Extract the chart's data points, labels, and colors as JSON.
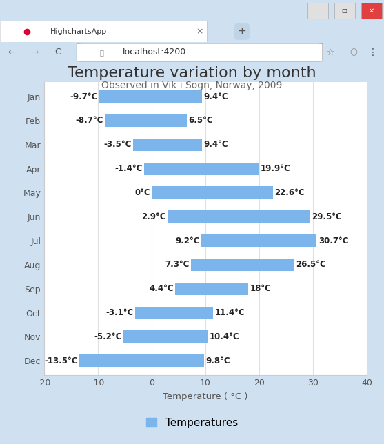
{
  "title": "Temperature variation by month",
  "subtitle": "Observed in Vik i Sogn, Norway, 2009",
  "xlabel": "Temperature ( °C )",
  "legend_label": "Temperatures",
  "bar_color": "#7cb5ec",
  "bg_color": "#cfe0f0",
  "plot_bg_color": "#ffffff",
  "months": [
    "Jan",
    "Feb",
    "Mar",
    "Apr",
    "May",
    "Jun",
    "Jul",
    "Aug",
    "Sep",
    "Oct",
    "Nov",
    "Dec"
  ],
  "low": [
    -9.7,
    -8.7,
    -3.5,
    -1.4,
    0.0,
    2.9,
    9.2,
    7.3,
    4.4,
    -3.1,
    -5.2,
    -13.5
  ],
  "high": [
    9.4,
    6.5,
    9.4,
    19.9,
    22.6,
    29.5,
    30.7,
    26.5,
    18.0,
    11.4,
    10.4,
    9.8
  ],
  "high_labels": [
    "9.4°C",
    "6.5°C",
    "9.4°C",
    "19.9°C",
    "22.6°C",
    "29.5°C",
    "30.7°C",
    "26.5°C",
    "18°C",
    "11.4°C",
    "10.4°C",
    "9.8°C"
  ],
  "low_labels": [
    "-9.7°C",
    "-8.7°C",
    "-3.5°C",
    "-1.4°C",
    "0°C",
    "2.9°C",
    "9.2°C",
    "7.3°C",
    "4.4°C",
    "-3.1°C",
    "-5.2°C",
    "-13.5°C"
  ],
  "xlim": [
    -20,
    40
  ],
  "xticks": [
    -20,
    -10,
    0,
    10,
    20,
    30,
    40
  ],
  "grid_color": "#e0e0e0",
  "title_fontsize": 16,
  "subtitle_fontsize": 10,
  "label_fontsize": 8.5,
  "tick_fontsize": 9,
  "legend_fontsize": 11,
  "browser_tab_text": "HighchartsApp",
  "browser_url": "localhost:4200"
}
